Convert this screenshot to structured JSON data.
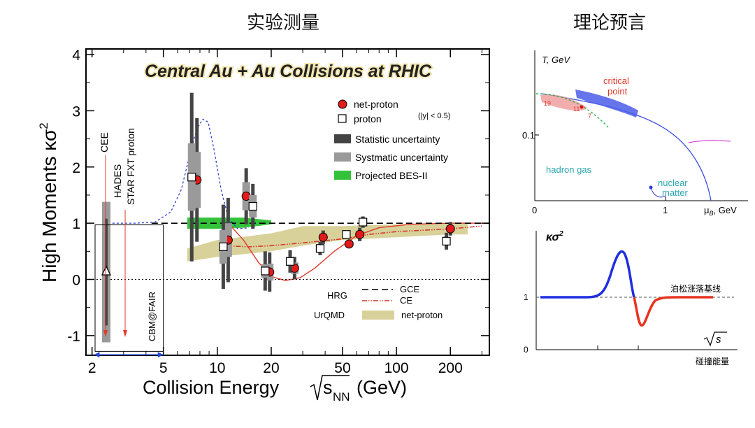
{
  "headers": {
    "left": "实验测量",
    "right": "理论预言"
  },
  "chart_data": [
    {
      "type": "scatter",
      "title": "Central Au + Au Collisions at RHIC",
      "xlabel": "Collision Energy",
      "xlabel_root_s": "s",
      "xlabel_sub": "NN",
      "xlabel_unit": "(GeV)",
      "ylabel": "High Moments κσ",
      "ylabel_exp": "2",
      "x_scale": "log",
      "xlim": [
        1.85,
        330
      ],
      "ylim": [
        -1.35,
        4.1
      ],
      "x_ticks": [
        2,
        5,
        10,
        20,
        50,
        100,
        200
      ],
      "x_tick_labels": [
        "2",
        "5",
        "10",
        "20",
        "50",
        "100",
        "200"
      ],
      "y_ticks": [
        -1,
        0,
        1,
        2,
        3,
        4
      ],
      "y_tick_labels": [
        "-1",
        "0",
        "1",
        "2",
        "3",
        "4"
      ],
      "legend": {
        "net_proton": "net-proton",
        "proton": "proton",
        "proton_note": "(|y| < 0.5)",
        "stat": "Statistic uncertainty",
        "sys": "Systmatic uncertainty",
        "projected": "Projected BES-II",
        "hrg": "HRG",
        "gce": "GCE",
        "ce": "CE",
        "urqmd": "UrQMD",
        "urqmd_series": "net-proton"
      },
      "annotations": {
        "cee": "CEE",
        "hades": "HADES",
        "star_fxt": "STAR FXT proton",
        "cbm": "CBM@FAIR"
      },
      "series": [
        {
          "name": "net-proton",
          "points": [
            {
              "x": 7.7,
              "y": 1.77,
              "stat": 1.1,
              "sys": 0.5
            },
            {
              "x": 11.5,
              "y": 0.7,
              "stat": 0.75,
              "sys": 0.3
            },
            {
              "x": 14.5,
              "y": 1.48,
              "stat": 0.5,
              "sys": 0.25
            },
            {
              "x": 19.6,
              "y": 0.13,
              "stat": 0.35,
              "sys": 0.15
            },
            {
              "x": 27,
              "y": 0.2,
              "stat": 0.2,
              "sys": 0.1
            },
            {
              "x": 39,
              "y": 0.75,
              "stat": 0.12,
              "sys": 0.07
            },
            {
              "x": 54.4,
              "y": 0.63,
              "stat": 0.07,
              "sys": 0.04
            },
            {
              "x": 62.4,
              "y": 0.8,
              "stat": 0.12,
              "sys": 0.06
            },
            {
              "x": 200,
              "y": 0.9,
              "stat": 0.12,
              "sys": 0.06
            }
          ]
        },
        {
          "name": "proton",
          "points": [
            {
              "x": 7.2,
              "y": 1.82,
              "stat": 1.5,
              "sys": 0.6
            },
            {
              "x": 10.8,
              "y": 0.58,
              "stat": 0.75,
              "sys": 0.3
            },
            {
              "x": 15.8,
              "y": 1.3,
              "stat": 0.4,
              "sys": 0.2
            },
            {
              "x": 18.5,
              "y": 0.15,
              "stat": 0.35,
              "sys": 0.12
            },
            {
              "x": 25.5,
              "y": 0.32,
              "stat": 0.2,
              "sys": 0.08
            },
            {
              "x": 37.5,
              "y": 0.55,
              "stat": 0.12,
              "sys": 0.06
            },
            {
              "x": 52.5,
              "y": 0.8,
              "stat": 0.06,
              "sys": 0.03
            },
            {
              "x": 65,
              "y": 1.02,
              "stat": 0.1,
              "sys": 0.05
            },
            {
              "x": 190,
              "y": 0.68,
              "stat": 0.15,
              "sys": 0.07
            }
          ]
        },
        {
          "name": "HADES",
          "points": [
            {
              "x": 2.4,
              "y": 0.13,
              "stat": 0.95,
              "sys": 1.25
            }
          ]
        }
      ]
    },
    {
      "type": "line",
      "xlabel": "μ",
      "xlabel_sub": "B",
      "xlabel_unit": ", GeV",
      "ylabel": "T, GeV",
      "x_ticks": [
        "0",
        "1"
      ],
      "y_ticks": [
        "0.1"
      ],
      "labels": {
        "critical": "critical",
        "point": "point",
        "hadron_gas": "hadron gas",
        "nuclear": "nuclear",
        "matter": "matter",
        "n19": "19",
        "n11": "11",
        "n7": "7"
      }
    },
    {
      "type": "line",
      "ylabel": "κσ",
      "ylabel_exp": "2",
      "xlabel": "碰撞能量",
      "y_ticks": [
        "0",
        "1"
      ],
      "baseline_label": "泊松涨落基线",
      "sqrt_s": "s"
    }
  ]
}
